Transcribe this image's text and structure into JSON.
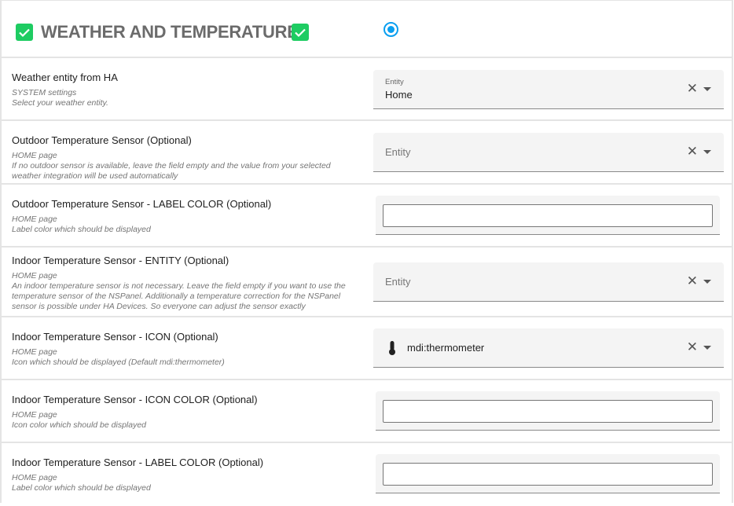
{
  "header": {
    "title": "WEATHER AND TEMPERATURE",
    "accent": "#1ecc62",
    "radio_color": "#0a9ff0",
    "radio_selected": true
  },
  "rows": [
    {
      "label": "Weather entity from HA",
      "desc": [
        "SYSTEM settings",
        "Select your weather entity."
      ],
      "field": {
        "type": "entity",
        "floating_label": "Entity",
        "value": "Home"
      }
    },
    {
      "label": "Outdoor Temperature Sensor (Optional)",
      "desc": [
        "HOME page",
        "If no outdoor sensor is available, leave the field empty and the value from your selected",
        "weather integration will be used automatically"
      ],
      "field": {
        "type": "entity",
        "placeholder": "Entity"
      }
    },
    {
      "label": "Outdoor Temperature Sensor - LABEL COLOR (Optional)",
      "desc": [
        "HOME page",
        "Label color which should be displayed"
      ],
      "field": {
        "type": "color",
        "value": ""
      }
    },
    {
      "label": "Indoor Temperature Sensor - ENTITY (Optional)",
      "desc": [
        "HOME page",
        "An indoor temperature sensor is not necessary. Leave the field empty if you want to use the",
        "temperature sensor of the NSPanel. Additionally a temperature correction for the NSPanel",
        "sensor is possible under HA Devices. So everyone can adjust the sensor exactly"
      ],
      "field": {
        "type": "entity",
        "placeholder": "Entity"
      }
    },
    {
      "label": "Indoor Temperature Sensor - ICON (Optional)",
      "desc": [
        "HOME page",
        "Icon which should be displayed (Default mdi:thermometer)"
      ],
      "field": {
        "type": "icon",
        "value": "mdi:thermometer",
        "icon": "thermometer-icon"
      }
    },
    {
      "label": "Indoor Temperature Sensor - ICON COLOR (Optional)",
      "desc": [
        "HOME page",
        "Icon color which should be displayed"
      ],
      "field": {
        "type": "color",
        "value": ""
      }
    },
    {
      "label": "Indoor Temperature Sensor - LABEL COLOR (Optional)",
      "desc": [
        "HOME page",
        "Label color which should be displayed"
      ],
      "field": {
        "type": "color",
        "value": ""
      }
    }
  ]
}
